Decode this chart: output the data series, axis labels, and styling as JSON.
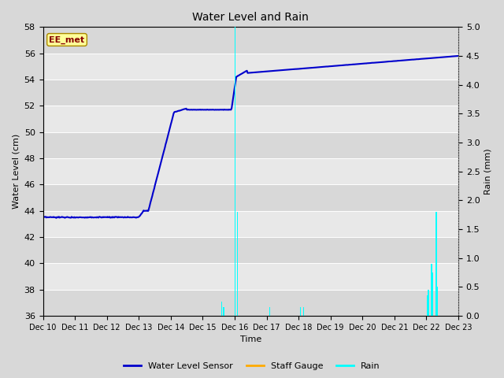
{
  "title": "Water Level and Rain",
  "xlabel": "Time",
  "ylabel_left": "Water Level (cm)",
  "ylabel_right": "Rain (mm)",
  "ylim_left": [
    36,
    58
  ],
  "ylim_right": [
    0.0,
    5.0
  ],
  "yticks_left": [
    36,
    38,
    40,
    42,
    44,
    46,
    48,
    50,
    52,
    54,
    56,
    58
  ],
  "yticks_right": [
    0.0,
    0.5,
    1.0,
    1.5,
    2.0,
    2.5,
    3.0,
    3.5,
    4.0,
    4.5,
    5.0
  ],
  "xtick_labels": [
    "Dec 10",
    "Dec 11",
    "Dec 12",
    "Dec 13",
    "Dec 14",
    "Dec 15",
    "Dec 16",
    "Dec 17",
    "Dec 18",
    "Dec 19",
    "Dec 20",
    "Dec 21",
    "Dec 22",
    "Dec 23"
  ],
  "fig_bg_color": "#d8d8d8",
  "plot_bg_light": "#e8e8e8",
  "plot_bg_dark": "#d8d8d8",
  "grid_color": "#ffffff",
  "annotation_label": "EE_met",
  "annotation_box_facecolor": "#ffff99",
  "annotation_box_edgecolor": "#aa8800",
  "annotation_text_color": "#880000",
  "water_level_color": "#0000cc",
  "staff_gauge_color": "#ffaa00",
  "rain_color": "#00ffff",
  "legend_water": "Water Level Sensor",
  "legend_staff": "Staff Gauge",
  "legend_rain": "Rain",
  "title_fontsize": 10,
  "axis_label_fontsize": 8,
  "tick_fontsize": 8
}
